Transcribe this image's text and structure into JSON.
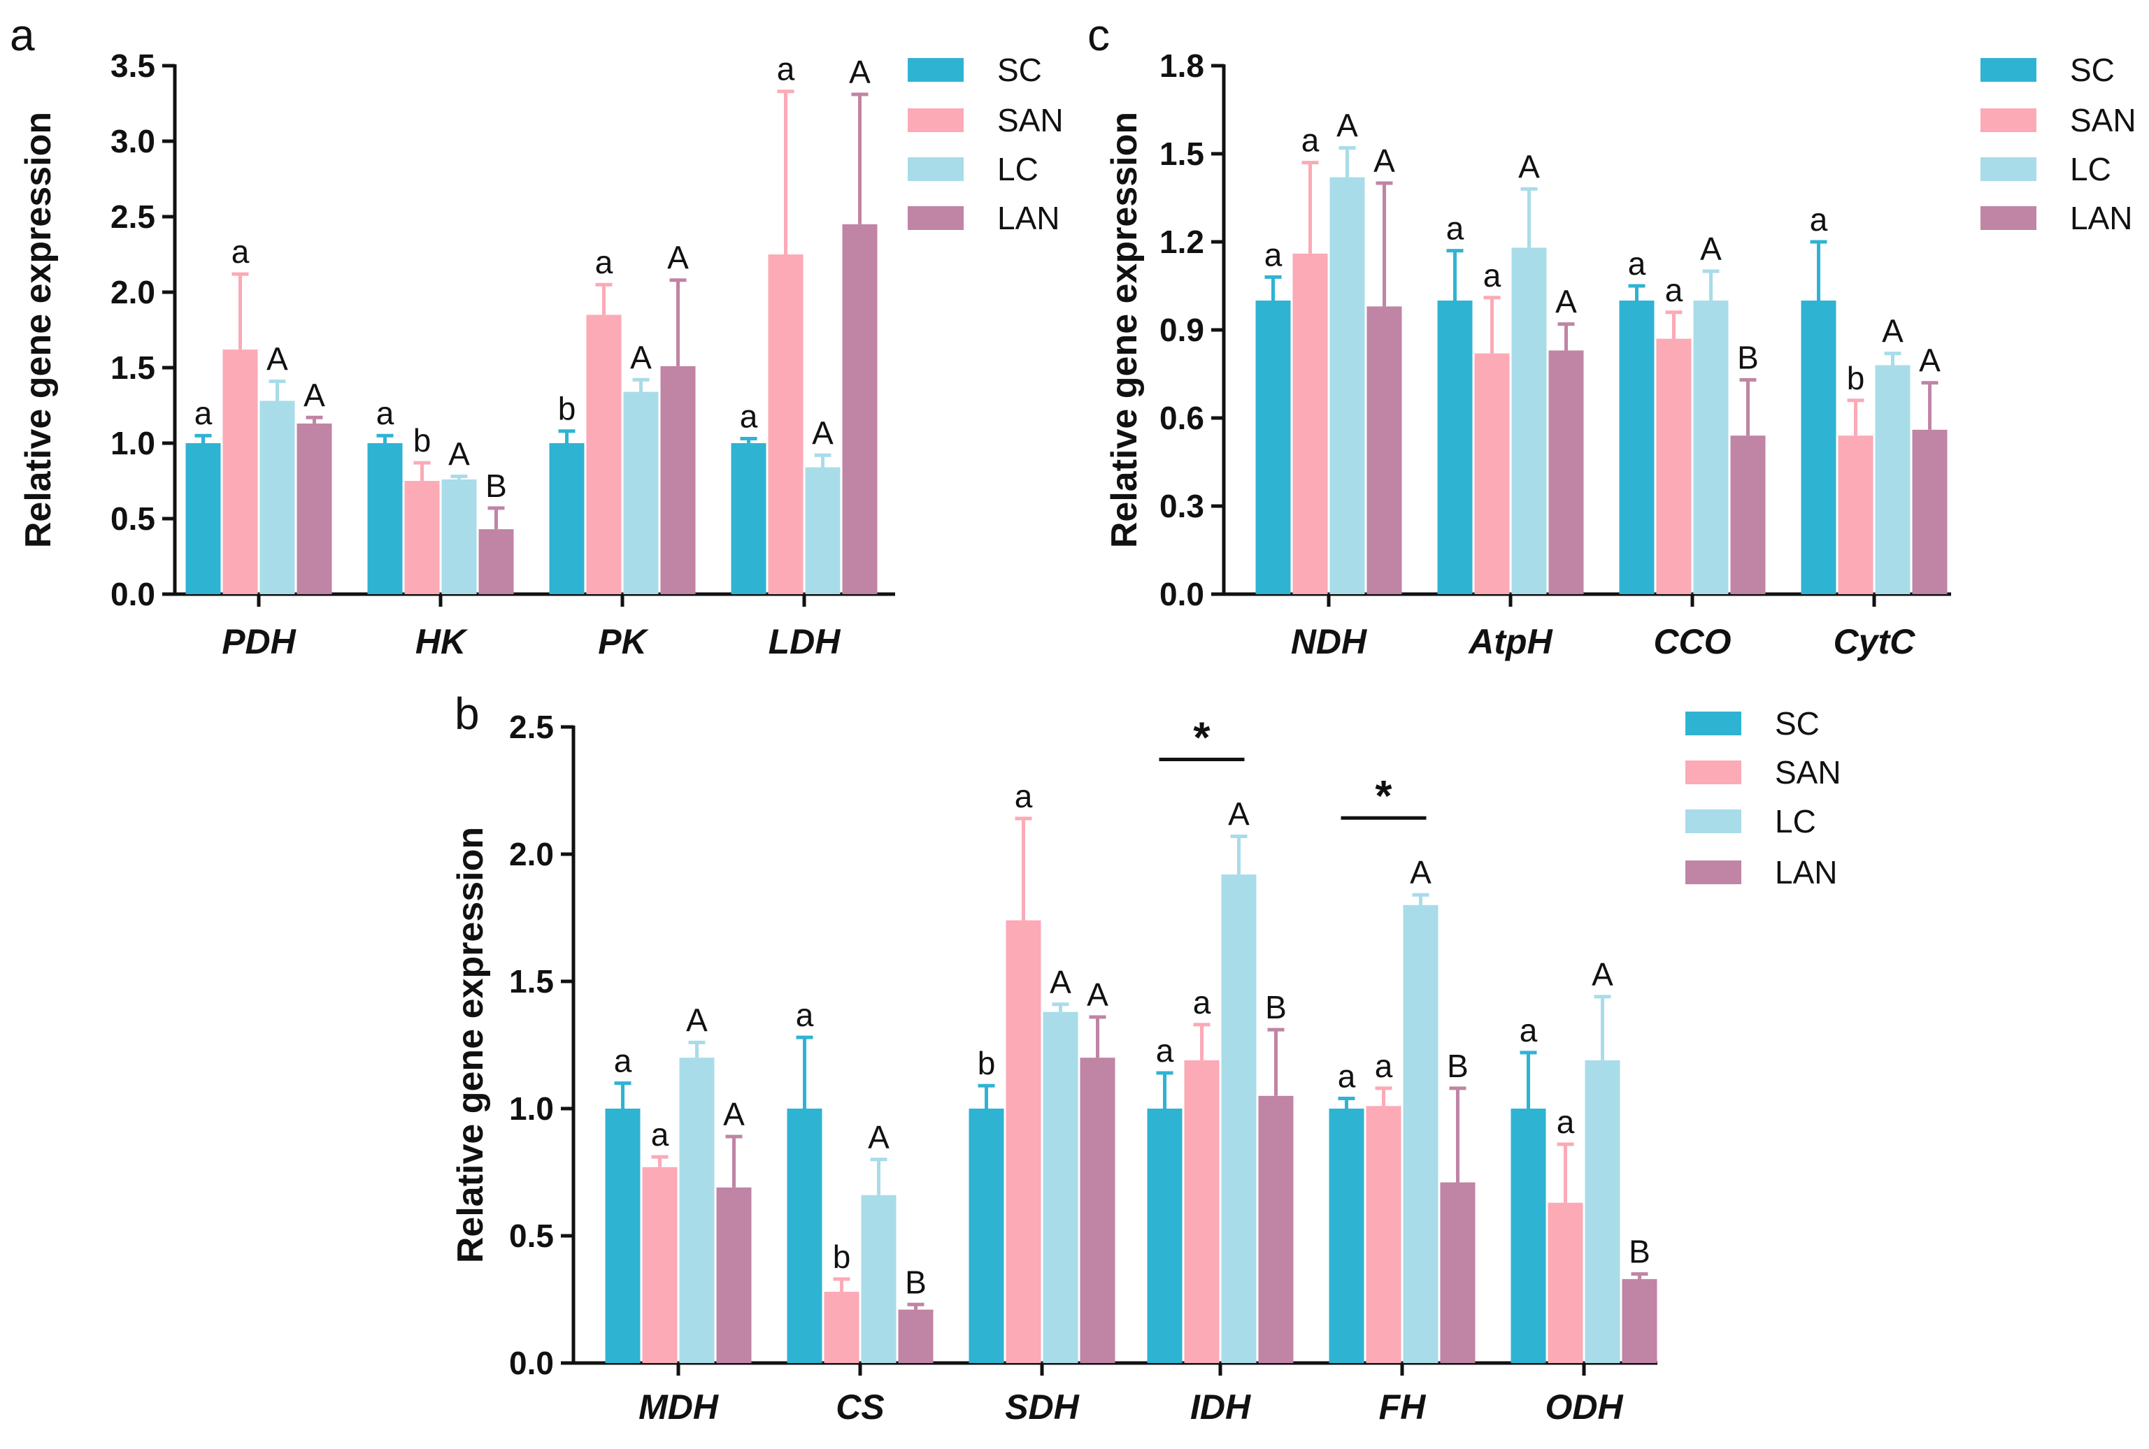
{
  "chart_data": [
    {
      "type": "bar",
      "panel": "a",
      "ylabel": "Relative gene expression",
      "ylim": [
        0,
        3.5
      ],
      "yticks": [
        "0.0",
        "0.5",
        "1.0",
        "1.5",
        "2.0",
        "2.5",
        "3.0",
        "3.5"
      ],
      "categories": [
        "PDH",
        "HK",
        "PK",
        "LDH"
      ],
      "series": [
        {
          "name": "SC",
          "color": "#2fb3d3",
          "values": [
            1.0,
            1.0,
            1.0,
            1.0
          ],
          "errors": [
            0.05,
            0.05,
            0.08,
            0.03
          ],
          "labels": [
            "a",
            "a",
            "b",
            "a"
          ]
        },
        {
          "name": "SAN",
          "color": "#fbaab6",
          "values": [
            1.62,
            0.75,
            1.85,
            2.25
          ],
          "errors": [
            0.5,
            0.12,
            0.2,
            1.08
          ],
          "labels": [
            "a",
            "b",
            "a",
            "a"
          ]
        },
        {
          "name": "LC",
          "color": "#a8dce9",
          "values": [
            1.28,
            0.76,
            1.34,
            0.84
          ],
          "errors": [
            0.13,
            0.02,
            0.08,
            0.08
          ],
          "labels": [
            "A",
            "A",
            "A",
            "A"
          ]
        },
        {
          "name": "LAN",
          "color": "#c084a4",
          "values": [
            1.13,
            0.43,
            1.51,
            2.45
          ],
          "errors": [
            0.04,
            0.14,
            0.57,
            0.86
          ],
          "labels": [
            "A",
            "B",
            "A",
            "A"
          ]
        }
      ],
      "significance": []
    },
    {
      "type": "bar",
      "panel": "c",
      "ylabel": "Relative gene expression",
      "ylim": [
        0,
        1.8
      ],
      "yticks": [
        "0.0",
        "0.3",
        "0.6",
        "0.9",
        "1.2",
        "1.5",
        "1.8"
      ],
      "categories": [
        "NDH",
        "AtpH",
        "CCO",
        "CytC"
      ],
      "series": [
        {
          "name": "SC",
          "color": "#2fb3d3",
          "values": [
            1.0,
            1.0,
            1.0,
            1.0
          ],
          "errors": [
            0.08,
            0.17,
            0.05,
            0.2
          ],
          "labels": [
            "a",
            "a",
            "a",
            "a"
          ]
        },
        {
          "name": "SAN",
          "color": "#fbaab6",
          "values": [
            1.16,
            0.82,
            0.87,
            0.54
          ],
          "errors": [
            0.31,
            0.19,
            0.09,
            0.12
          ],
          "labels": [
            "a",
            "a",
            "a",
            "b"
          ]
        },
        {
          "name": "LC",
          "color": "#a8dce9",
          "values": [
            1.42,
            1.18,
            1.0,
            0.78
          ],
          "errors": [
            0.1,
            0.2,
            0.1,
            0.04
          ],
          "labels": [
            "A",
            "A",
            "A",
            "A"
          ]
        },
        {
          "name": "LAN",
          "color": "#c084a4",
          "values": [
            0.98,
            0.83,
            0.54,
            0.56
          ],
          "errors": [
            0.42,
            0.09,
            0.19,
            0.16
          ],
          "labels": [
            "A",
            "A",
            "B",
            "A"
          ]
        }
      ],
      "significance": []
    },
    {
      "type": "bar",
      "panel": "b",
      "ylabel": "Relative gene expression",
      "ylim": [
        0,
        2.5
      ],
      "yticks": [
        "0.0",
        "0.5",
        "1.0",
        "1.5",
        "2.0",
        "2.5"
      ],
      "categories": [
        "MDH",
        "CS",
        "SDH",
        "IDH",
        "FH",
        "ODH"
      ],
      "series": [
        {
          "name": "SC",
          "color": "#2fb3d3",
          "values": [
            1.0,
            1.0,
            1.0,
            1.0,
            1.0,
            1.0
          ],
          "errors": [
            0.1,
            0.28,
            0.09,
            0.14,
            0.04,
            0.22
          ],
          "labels": [
            "a",
            "a",
            "b",
            "a",
            "a",
            "a"
          ]
        },
        {
          "name": "SAN",
          "color": "#fbaab6",
          "values": [
            0.77,
            0.28,
            1.74,
            1.19,
            1.01,
            0.63
          ],
          "errors": [
            0.04,
            0.05,
            0.4,
            0.14,
            0.07,
            0.23
          ],
          "labels": [
            "a",
            "b",
            "a",
            "a",
            "a",
            "a"
          ]
        },
        {
          "name": "LC",
          "color": "#a8dce9",
          "values": [
            1.2,
            0.66,
            1.38,
            1.92,
            1.8,
            1.19
          ],
          "errors": [
            0.06,
            0.14,
            0.03,
            0.15,
            0.04,
            0.25
          ],
          "labels": [
            "A",
            "A",
            "A",
            "A",
            "A",
            "A"
          ]
        },
        {
          "name": "LAN",
          "color": "#c084a4",
          "values": [
            0.69,
            0.21,
            1.2,
            1.05,
            0.71,
            0.33
          ],
          "errors": [
            0.2,
            0.02,
            0.16,
            0.26,
            0.37,
            0.02
          ],
          "labels": [
            "A",
            "B",
            "A",
            "B",
            "B",
            "B"
          ]
        }
      ],
      "significance": [
        {
          "category": "IDH",
          "label": "*"
        },
        {
          "category": "FH",
          "label": "*"
        }
      ]
    }
  ]
}
